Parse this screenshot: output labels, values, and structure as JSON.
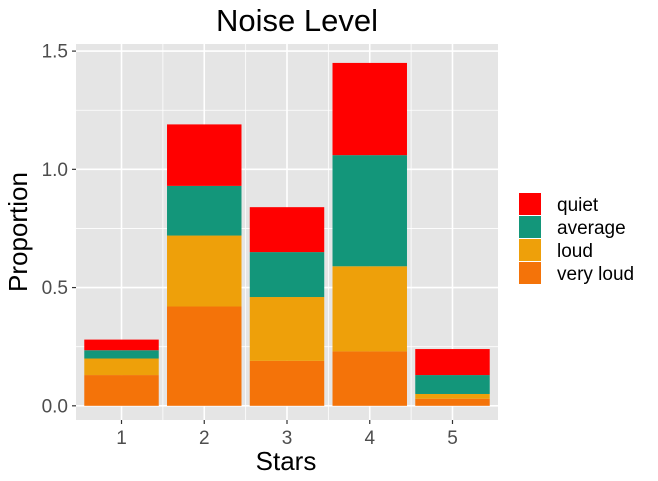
{
  "chart_data": {
    "type": "bar",
    "stacked": true,
    "title": "Noise Level",
    "xlabel": "Stars",
    "ylabel": "Proportion",
    "categories": [
      "1",
      "2",
      "3",
      "4",
      "5"
    ],
    "ylim": [
      -0.06,
      1.53
    ],
    "yticks": [
      {
        "value": 0.0,
        "label": "0.0"
      },
      {
        "value": 0.5,
        "label": "0.5"
      },
      {
        "value": 1.0,
        "label": "1.0"
      },
      {
        "value": 1.5,
        "label": "1.5"
      }
    ],
    "grid": true,
    "legend_position": "right",
    "series": [
      {
        "name": "very loud",
        "color": "#F47309",
        "values": [
          0.13,
          0.42,
          0.19,
          0.23,
          0.03
        ]
      },
      {
        "name": "loud",
        "color": "#EEA00A",
        "values": [
          0.07,
          0.3,
          0.27,
          0.36,
          0.02
        ]
      },
      {
        "name": "average",
        "color": "#13967A",
        "values": [
          0.035,
          0.21,
          0.19,
          0.47,
          0.08
        ]
      },
      {
        "name": "quiet",
        "color": "#FF0000",
        "values": [
          0.045,
          0.26,
          0.19,
          0.39,
          0.11
        ]
      }
    ],
    "legend_order": [
      "quiet",
      "average",
      "loud",
      "very loud"
    ],
    "panel_background": "#E5E5E5",
    "grid_color": "#FFFFFF"
  }
}
